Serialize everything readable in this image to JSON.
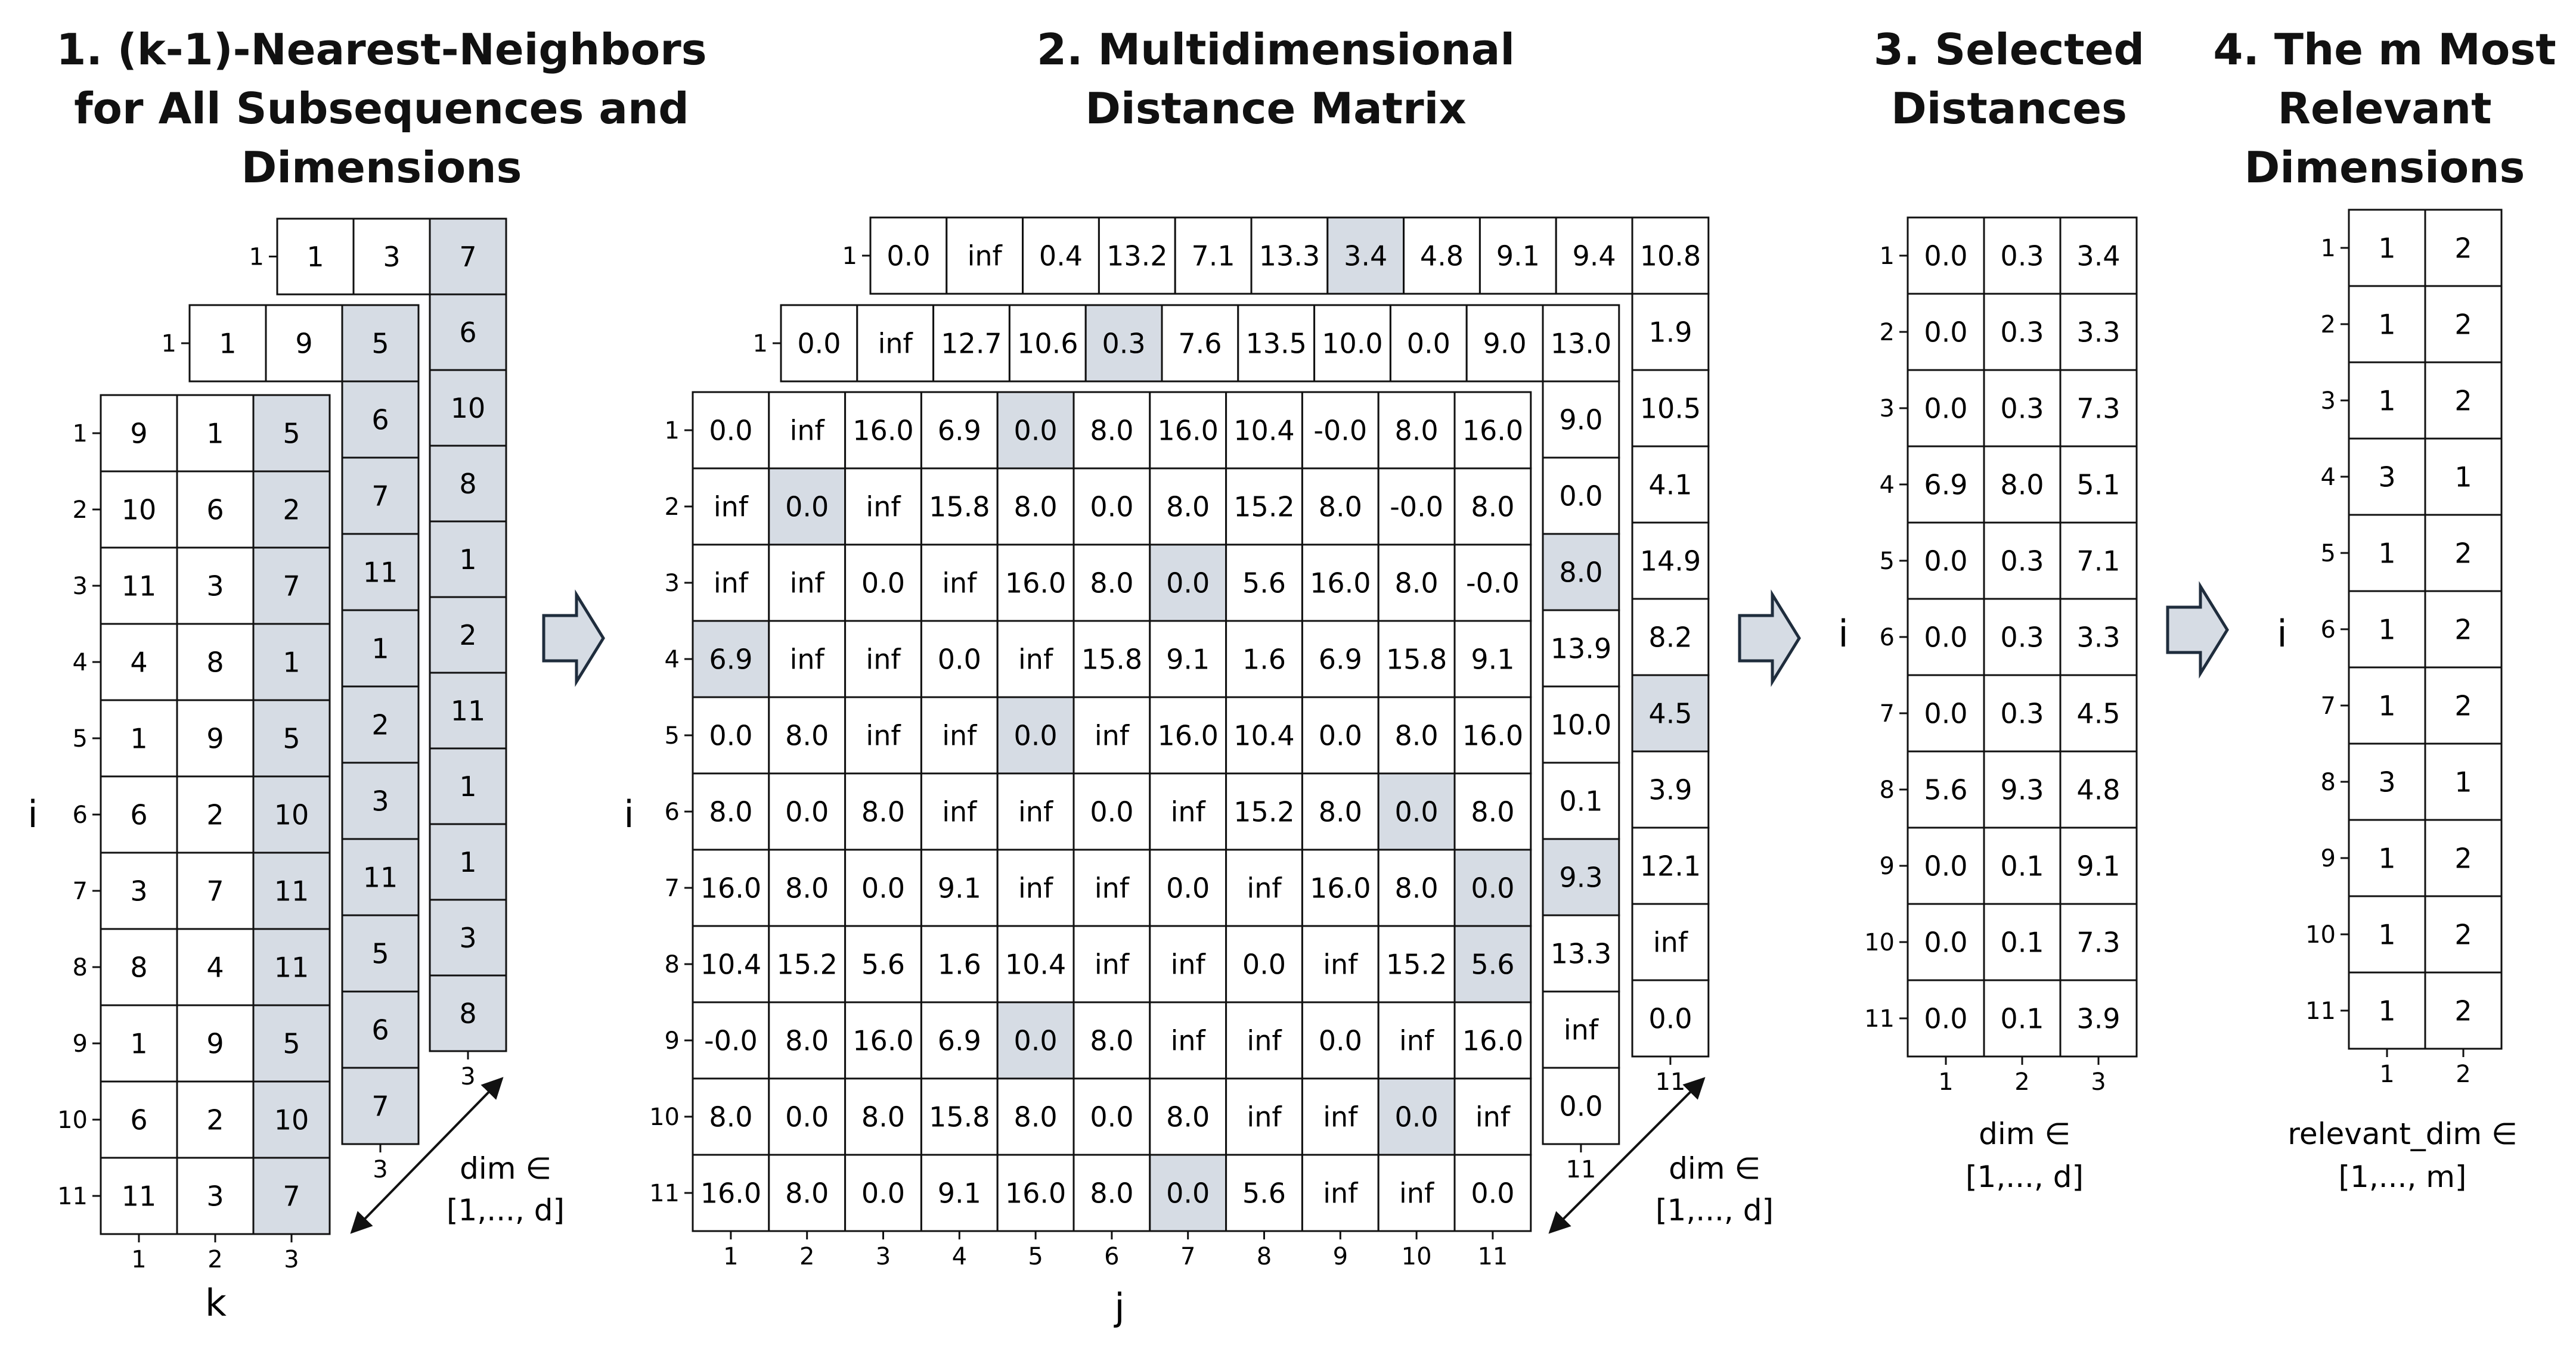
{
  "titles": {
    "panel1": [
      "1. (k-1)-Nearest-Neighbors",
      "for All Subsequences and",
      "Dimensions"
    ],
    "panel2": [
      "2. Multidimensional",
      "Distance Matrix"
    ],
    "panel3": [
      "3. Selected",
      "Distances"
    ],
    "panel4": [
      "4. The m Most",
      "Relevant",
      "Dimensions"
    ]
  },
  "axis_labels": {
    "i": "i",
    "k": "k",
    "j": "j",
    "dim_in": "dim ∈",
    "range_d": "[1,..., d]",
    "relevant_dim_in": "relevant_dim ∈",
    "range_m": "[1,..., m]"
  },
  "colors": {
    "highlight": "#d6dce4",
    "grid": "#111111",
    "arrow_fill": "#d6dce4",
    "arrow_stroke": "#1f2d3d"
  },
  "panel1": {
    "col_ticks": [
      "1",
      "2",
      "3"
    ],
    "row_ticks": [
      "1",
      "2",
      "3",
      "4",
      "5",
      "6",
      "7",
      "8",
      "9",
      "10",
      "11"
    ],
    "front_rows": [
      [
        "9",
        "1",
        "5"
      ],
      [
        "10",
        "6",
        "2"
      ],
      [
        "11",
        "3",
        "7"
      ],
      [
        "4",
        "8",
        "1"
      ],
      [
        "1",
        "9",
        "5"
      ],
      [
        "6",
        "2",
        "10"
      ],
      [
        "3",
        "7",
        "11"
      ],
      [
        "8",
        "4",
        "11"
      ],
      [
        "1",
        "9",
        "5"
      ],
      [
        "6",
        "2",
        "10"
      ],
      [
        "11",
        "3",
        "7"
      ]
    ],
    "middle_row1": [
      "1",
      "9",
      "5"
    ],
    "middle_col3": [
      "5",
      "6",
      "7",
      "11",
      "1",
      "2",
      "3",
      "11",
      "5",
      "6",
      "7"
    ],
    "back_row1": [
      "1",
      "3",
      "7"
    ],
    "back_col3": [
      "7",
      "6",
      "10",
      "8",
      "1",
      "2",
      "11",
      "1",
      "1",
      "3",
      "8"
    ]
  },
  "panel2": {
    "col_ticks": [
      "1",
      "2",
      "3",
      "4",
      "5",
      "6",
      "7",
      "8",
      "9",
      "10",
      "11"
    ],
    "row_ticks": [
      "1",
      "2",
      "3",
      "4",
      "5",
      "6",
      "7",
      "8",
      "9",
      "10",
      "11"
    ],
    "front_rows": [
      [
        "0.0",
        "inf",
        "16.0",
        "6.9",
        "0.0",
        "8.0",
        "16.0",
        "10.4",
        "-0.0",
        "8.0",
        "16.0"
      ],
      [
        "inf",
        "0.0",
        "inf",
        "15.8",
        "8.0",
        "0.0",
        "8.0",
        "15.2",
        "8.0",
        "-0.0",
        "8.0"
      ],
      [
        "inf",
        "inf",
        "0.0",
        "inf",
        "16.0",
        "8.0",
        "0.0",
        "5.6",
        "16.0",
        "8.0",
        "-0.0"
      ],
      [
        "6.9",
        "inf",
        "inf",
        "0.0",
        "inf",
        "15.8",
        "9.1",
        "1.6",
        "6.9",
        "15.8",
        "9.1"
      ],
      [
        "0.0",
        "8.0",
        "inf",
        "inf",
        "0.0",
        "inf",
        "16.0",
        "10.4",
        "0.0",
        "8.0",
        "16.0"
      ],
      [
        "8.0",
        "0.0",
        "8.0",
        "inf",
        "inf",
        "0.0",
        "inf",
        "15.2",
        "8.0",
        "0.0",
        "8.0"
      ],
      [
        "16.0",
        "8.0",
        "0.0",
        "9.1",
        "inf",
        "inf",
        "0.0",
        "inf",
        "16.0",
        "8.0",
        "0.0"
      ],
      [
        "10.4",
        "15.2",
        "5.6",
        "1.6",
        "10.4",
        "inf",
        "inf",
        "0.0",
        "inf",
        "15.2",
        "5.6"
      ],
      [
        "-0.0",
        "8.0",
        "16.0",
        "6.9",
        "0.0",
        "8.0",
        "inf",
        "inf",
        "0.0",
        "inf",
        "16.0"
      ],
      [
        "8.0",
        "0.0",
        "8.0",
        "15.8",
        "8.0",
        "0.0",
        "8.0",
        "inf",
        "inf",
        "0.0",
        "inf"
      ],
      [
        "16.0",
        "8.0",
        "0.0",
        "9.1",
        "16.0",
        "8.0",
        "0.0",
        "5.6",
        "inf",
        "inf",
        "0.0"
      ]
    ],
    "front_highlight": [
      [
        0,
        4
      ],
      [
        1,
        1
      ],
      [
        2,
        6
      ],
      [
        3,
        0
      ],
      [
        4,
        4
      ],
      [
        5,
        9
      ],
      [
        6,
        10
      ],
      [
        7,
        10
      ],
      [
        8,
        4
      ],
      [
        9,
        9
      ],
      [
        10,
        6
      ]
    ],
    "middle_row1": [
      "0.0",
      "inf",
      "12.7",
      "10.6",
      "0.3",
      "7.6",
      "13.5",
      "10.0",
      "0.0",
      "9.0",
      "13.0"
    ],
    "middle_col11": [
      "13.0",
      "9.0",
      "0.0",
      "8.0",
      "13.9",
      "10.0",
      "0.1",
      "9.3",
      "13.3",
      "inf",
      "0.0"
    ],
    "middle_highlight_row1": [
      4
    ],
    "middle_highlight_col11": [
      3,
      7
    ],
    "back_row1": [
      "0.0",
      "inf",
      "0.4",
      "13.2",
      "7.1",
      "13.3",
      "3.4",
      "4.8",
      "9.1",
      "9.4",
      "10.8"
    ],
    "back_col11": [
      "10.8",
      "1.9",
      "10.5",
      "4.1",
      "14.9",
      "8.2",
      "4.5",
      "3.9",
      "12.1",
      "inf",
      "0.0"
    ],
    "back_highlight_row1": [
      6
    ],
    "back_highlight_col11": [
      6
    ]
  },
  "panel3": {
    "col_ticks": [
      "1",
      "2",
      "3"
    ],
    "row_ticks": [
      "1",
      "2",
      "3",
      "4",
      "5",
      "6",
      "7",
      "8",
      "9",
      "10",
      "11"
    ],
    "rows": [
      [
        "0.0",
        "0.3",
        "3.4"
      ],
      [
        "0.0",
        "0.3",
        "3.3"
      ],
      [
        "0.0",
        "0.3",
        "7.3"
      ],
      [
        "6.9",
        "8.0",
        "5.1"
      ],
      [
        "0.0",
        "0.3",
        "7.1"
      ],
      [
        "0.0",
        "0.3",
        "3.3"
      ],
      [
        "0.0",
        "0.3",
        "4.5"
      ],
      [
        "5.6",
        "9.3",
        "4.8"
      ],
      [
        "0.0",
        "0.1",
        "9.1"
      ],
      [
        "0.0",
        "0.1",
        "7.3"
      ],
      [
        "0.0",
        "0.1",
        "3.9"
      ]
    ]
  },
  "panel4": {
    "col_ticks": [
      "1",
      "2"
    ],
    "row_ticks": [
      "1",
      "2",
      "3",
      "4",
      "5",
      "6",
      "7",
      "8",
      "9",
      "10",
      "11"
    ],
    "rows": [
      [
        "1",
        "2"
      ],
      [
        "1",
        "2"
      ],
      [
        "1",
        "2"
      ],
      [
        "3",
        "1"
      ],
      [
        "1",
        "2"
      ],
      [
        "1",
        "2"
      ],
      [
        "1",
        "2"
      ],
      [
        "3",
        "1"
      ],
      [
        "1",
        "2"
      ],
      [
        "1",
        "2"
      ],
      [
        "1",
        "2"
      ]
    ]
  }
}
